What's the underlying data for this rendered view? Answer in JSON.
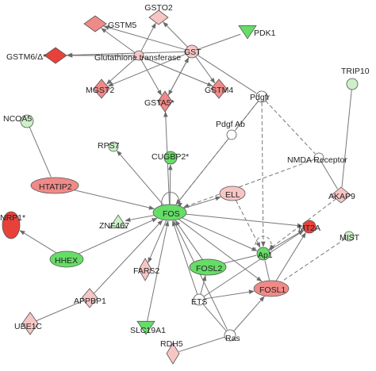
{
  "colors": {
    "up_strong": "#e8413a",
    "up_mid": "#f08a88",
    "up_light": "#f7c6c4",
    "down_mid": "#66dd66",
    "down_light": "#cdf0c8",
    "none": "#ffffff",
    "edge": "#777777"
  },
  "nodes": {
    "gstm5": {
      "label": "GSTM5",
      "shape": "diamond",
      "color": "up_mid"
    },
    "gsto2": {
      "label": "GSTO2",
      "shape": "diamond",
      "color": "up_light"
    },
    "pdk1": {
      "label": "PDK1",
      "shape": "triangle-down",
      "color": "down_mid"
    },
    "gstm6": {
      "label": "GSTM6/Δ*",
      "shape": "diamond",
      "color": "up_strong"
    },
    "glut": {
      "label": "Glutathione transferase",
      "shape": "circle",
      "color": "up_light"
    },
    "gst": {
      "label": "GST",
      "shape": "circle",
      "color": "up_light"
    },
    "mgst2": {
      "label": "MGST2",
      "shape": "diamond",
      "color": "up_mid"
    },
    "gstm4": {
      "label": "GSTM4",
      "shape": "diamond",
      "color": "up_mid"
    },
    "gsta5": {
      "label": "GSTA5*",
      "shape": "diamond",
      "color": "up_mid"
    },
    "pdgfr": {
      "label": "Pdgfr",
      "shape": "circle",
      "color": "none"
    },
    "trip10": {
      "label": "TRIP10",
      "shape": "circle",
      "color": "down_light"
    },
    "ncoa5": {
      "label": "NCOA5",
      "shape": "circle",
      "color": "down_light"
    },
    "rps7": {
      "label": "RPS7",
      "shape": "circle",
      "color": "down_light"
    },
    "cugbp2": {
      "label": "CUGBP2*",
      "shape": "circle",
      "color": "down_mid"
    },
    "pdgfab": {
      "label": "Pdgf Ab",
      "shape": "circle",
      "color": "none"
    },
    "nmda": {
      "label": "NMDA Receptor",
      "shape": "circle",
      "color": "none"
    },
    "akap9": {
      "label": "AKAP9",
      "shape": "diamond",
      "color": "up_light"
    },
    "htatip2": {
      "label": "HTATIP2",
      "shape": "ellipse",
      "color": "up_mid"
    },
    "ell": {
      "label": "ELL",
      "shape": "ellipse",
      "color": "up_light"
    },
    "fos": {
      "label": "FOS",
      "shape": "ellipse",
      "color": "down_mid"
    },
    "nrp1": {
      "label": "NRP1*",
      "shape": "ellipse",
      "color": "up_strong"
    },
    "znf467": {
      "label": "ZNF467",
      "shape": "triangle",
      "color": "down_light"
    },
    "mt2a": {
      "label": "MT2A",
      "shape": "circle",
      "color": "up_strong"
    },
    "mist": {
      "label": "MIST",
      "shape": "circle",
      "color": "down_light"
    },
    "ap1": {
      "label": "Ap1",
      "shape": "circle",
      "color": "down_mid"
    },
    "hhex": {
      "label": "HHEX",
      "shape": "ellipse",
      "color": "down_mid"
    },
    "fars2": {
      "label": "FARS2",
      "shape": "diamond",
      "color": "up_light"
    },
    "fosl2": {
      "label": "FOSL2",
      "shape": "ellipse",
      "color": "down_mid"
    },
    "fosl1": {
      "label": "FOSL1",
      "shape": "ellipse",
      "color": "up_mid"
    },
    "appbp1": {
      "label": "APPBP1",
      "shape": "diamond",
      "color": "up_light"
    },
    "ets": {
      "label": "ETS",
      "shape": "circle",
      "color": "none"
    },
    "ube1c": {
      "label": "UBE1C",
      "shape": "diamond",
      "color": "up_light"
    },
    "slc19a1": {
      "label": "SLC19A1",
      "shape": "triangle-down",
      "color": "down_mid"
    },
    "ras": {
      "label": "Ras",
      "shape": "circle",
      "color": "none"
    },
    "rdh5": {
      "label": "RDH5",
      "shape": "diamond",
      "color": "up_light"
    }
  },
  "edges": [
    {
      "from": "gst",
      "to": "gstm5",
      "style": "solid",
      "arrow": true
    },
    {
      "from": "gst",
      "to": "gsto2",
      "style": "solid",
      "arrow": true
    },
    {
      "from": "gst",
      "to": "pdk1",
      "style": "solid",
      "arrow": false
    },
    {
      "from": "gst",
      "to": "gstm6",
      "style": "solid",
      "arrow": true
    },
    {
      "from": "gst",
      "to": "mgst2",
      "style": "solid",
      "arrow": true
    },
    {
      "from": "gst",
      "to": "gstm4",
      "style": "solid",
      "arrow": true
    },
    {
      "from": "gst",
      "to": "gsta5",
      "style": "solid",
      "arrow": true
    },
    {
      "from": "gst",
      "to": "pdgfr",
      "style": "solid",
      "arrow": false
    },
    {
      "from": "glut",
      "to": "gstm5",
      "style": "solid",
      "arrow": true
    },
    {
      "from": "glut",
      "to": "gsto2",
      "style": "solid",
      "arrow": true
    },
    {
      "from": "glut",
      "to": "gstm6",
      "style": "solid",
      "arrow": true
    },
    {
      "from": "glut",
      "to": "mgst2",
      "style": "solid",
      "arrow": true
    },
    {
      "from": "glut",
      "to": "gstm4",
      "style": "solid",
      "arrow": true
    },
    {
      "from": "glut",
      "to": "gsta5",
      "style": "solid",
      "arrow": true
    },
    {
      "from": "gsta5",
      "to": "gst",
      "style": "solid",
      "arrow": true
    },
    {
      "from": "gstm4",
      "to": "glut",
      "style": "solid",
      "arrow": false
    },
    {
      "from": "pdgfr",
      "to": "pdgfab",
      "style": "solid",
      "arrow": false
    },
    {
      "from": "pdgfr",
      "to": "nmda",
      "style": "dashed",
      "arrow": false
    },
    {
      "from": "pdgfr",
      "to": "fos",
      "style": "dashed",
      "arrow": true
    },
    {
      "from": "pdgfr",
      "to": "ap1",
      "style": "dashed",
      "arrow": true
    },
    {
      "from": "nmda",
      "to": "fos",
      "style": "dashed",
      "arrow": true
    },
    {
      "from": "nmda",
      "to": "akap9",
      "style": "solid",
      "arrow": false
    },
    {
      "from": "trip10",
      "to": "akap9",
      "style": "solid",
      "arrow": false
    },
    {
      "from": "akap9",
      "to": "ap1",
      "style": "dashed",
      "arrow": true
    },
    {
      "from": "pdgfab",
      "to": "fos",
      "style": "solid",
      "arrow": true
    },
    {
      "from": "ncoa5",
      "to": "htatip2",
      "style": "solid",
      "arrow": false
    },
    {
      "from": "htatip2",
      "to": "fos",
      "style": "solid",
      "arrow": true
    },
    {
      "from": "fos",
      "to": "rps7",
      "style": "solid",
      "arrow": true
    },
    {
      "from": "fos",
      "to": "cugbp2",
      "style": "solid",
      "arrow": true
    },
    {
      "from": "fos",
      "to": "gsta5",
      "style": "solid",
      "arrow": true
    },
    {
      "from": "fos",
      "to": "ell",
      "style": "solid",
      "arrow": true
    },
    {
      "from": "fos",
      "to": "znf467",
      "style": "solid",
      "arrow": true
    },
    {
      "from": "fos",
      "to": "mt2a",
      "style": "solid",
      "arrow": true
    },
    {
      "from": "fos",
      "to": "ap1",
      "style": "solid",
      "arrow": true
    },
    {
      "from": "fos",
      "to": "fars2",
      "style": "solid",
      "arrow": true
    },
    {
      "from": "fos",
      "to": "fosl1",
      "style": "solid",
      "arrow": true
    },
    {
      "from": "fos",
      "to": "ras",
      "style": "solid",
      "arrow": false
    },
    {
      "from": "hhex",
      "to": "nrp1",
      "style": "solid",
      "arrow": true
    },
    {
      "from": "hhex",
      "to": "fos",
      "style": "solid",
      "arrow": true
    },
    {
      "from": "appbp1",
      "to": "fos",
      "style": "solid",
      "arrow": true
    },
    {
      "from": "ube1c",
      "to": "appbp1",
      "style": "solid",
      "arrow": false
    },
    {
      "from": "slc19a1",
      "to": "fos",
      "style": "solid",
      "arrow": true
    },
    {
      "from": "fosl2",
      "to": "fos",
      "style": "solid",
      "arrow": true
    },
    {
      "from": "fosl2",
      "to": "ap1",
      "style": "solid",
      "arrow": false
    },
    {
      "from": "fosl1",
      "to": "ap1",
      "style": "solid",
      "arrow": false
    },
    {
      "from": "ets",
      "to": "fos",
      "style": "solid",
      "arrow": true
    },
    {
      "from": "ets",
      "to": "fosl1",
      "style": "solid",
      "arrow": true
    },
    {
      "from": "ets",
      "to": "fosl2",
      "style": "solid",
      "arrow": true
    },
    {
      "from": "ets",
      "to": "mt2a",
      "style": "solid",
      "arrow": true
    },
    {
      "from": "ras",
      "to": "ets",
      "style": "solid",
      "arrow": false
    },
    {
      "from": "ras",
      "to": "fosl1",
      "style": "solid",
      "arrow": true
    },
    {
      "from": "ras",
      "to": "rdh5",
      "style": "solid",
      "arrow": false
    },
    {
      "from": "ell",
      "to": "ap1",
      "style": "dashed",
      "arrow": true
    },
    {
      "from": "mist",
      "to": "fosl1",
      "style": "dashed",
      "arrow": false
    },
    {
      "from": "ap1",
      "to": "mt2a",
      "style": "solid",
      "arrow": true
    },
    {
      "from": "fosl1",
      "to": "mt2a",
      "style": "solid",
      "arrow": true
    }
  ]
}
